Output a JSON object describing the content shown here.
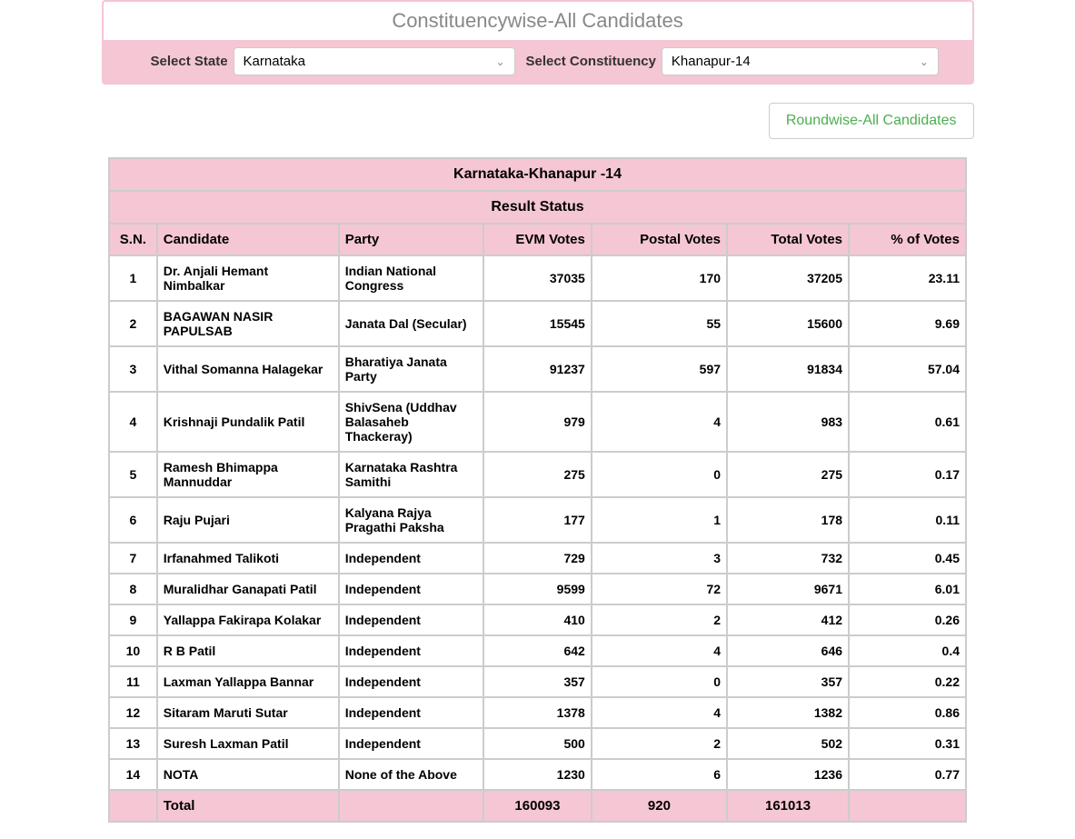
{
  "title": "Constituencywise-All Candidates",
  "filters": {
    "state_label": "Select State",
    "state_value": "Karnataka",
    "constituency_label": "Select Constituency",
    "constituency_value": "Khanapur-14"
  },
  "roundwise_link": "Roundwise-All Candidates",
  "table": {
    "constituency_title": "Karnataka-Khanapur -14",
    "result_status": "Result Status",
    "headers": {
      "sn": "S.N.",
      "candidate": "Candidate",
      "party": "Party",
      "evm": "EVM Votes",
      "postal": "Postal Votes",
      "total": "Total Votes",
      "pct": "% of Votes"
    },
    "rows": [
      {
        "sn": "1",
        "candidate": "Dr. Anjali Hemant Nimbalkar",
        "party": "Indian National Congress",
        "evm": "37035",
        "postal": "170",
        "total": "37205",
        "pct": "23.11"
      },
      {
        "sn": "2",
        "candidate": "BAGAWAN NASIR PAPULSAB",
        "party": "Janata Dal (Secular)",
        "evm": "15545",
        "postal": "55",
        "total": "15600",
        "pct": "9.69"
      },
      {
        "sn": "3",
        "candidate": "Vithal Somanna Halagekar",
        "party": "Bharatiya Janata Party",
        "evm": "91237",
        "postal": "597",
        "total": "91834",
        "pct": "57.04"
      },
      {
        "sn": "4",
        "candidate": "Krishnaji Pundalik Patil",
        "party": "ShivSena (Uddhav Balasaheb Thackeray)",
        "evm": "979",
        "postal": "4",
        "total": "983",
        "pct": "0.61"
      },
      {
        "sn": "5",
        "candidate": "Ramesh Bhimappa Mannuddar",
        "party": "Karnataka Rashtra Samithi",
        "evm": "275",
        "postal": "0",
        "total": "275",
        "pct": "0.17"
      },
      {
        "sn": "6",
        "candidate": "Raju Pujari",
        "party": "Kalyana Rajya Pragathi Paksha",
        "evm": "177",
        "postal": "1",
        "total": "178",
        "pct": "0.11"
      },
      {
        "sn": "7",
        "candidate": "Irfanahmed Talikoti",
        "party": "Independent",
        "evm": "729",
        "postal": "3",
        "total": "732",
        "pct": "0.45"
      },
      {
        "sn": "8",
        "candidate": "Muralidhar Ganapati Patil",
        "party": "Independent",
        "evm": "9599",
        "postal": "72",
        "total": "9671",
        "pct": "6.01"
      },
      {
        "sn": "9",
        "candidate": "Yallappa Fakirapa Kolakar",
        "party": "Independent",
        "evm": "410",
        "postal": "2",
        "total": "412",
        "pct": "0.26"
      },
      {
        "sn": "10",
        "candidate": "R B Patil",
        "party": "Independent",
        "evm": "642",
        "postal": "4",
        "total": "646",
        "pct": "0.4"
      },
      {
        "sn": "11",
        "candidate": "Laxman Yallappa Bannar",
        "party": "Independent",
        "evm": "357",
        "postal": "0",
        "total": "357",
        "pct": "0.22"
      },
      {
        "sn": "12",
        "candidate": "Sitaram Maruti Sutar",
        "party": "Independent",
        "evm": "1378",
        "postal": "4",
        "total": "1382",
        "pct": "0.86"
      },
      {
        "sn": "13",
        "candidate": "Suresh Laxman Patil",
        "party": "Independent",
        "evm": "500",
        "postal": "2",
        "total": "502",
        "pct": "0.31"
      },
      {
        "sn": "14",
        "candidate": "NOTA",
        "party": "None of the Above",
        "evm": "1230",
        "postal": "6",
        "total": "1236",
        "pct": "0.77"
      }
    ],
    "totals": {
      "label": "Total",
      "evm": "160093",
      "postal": "920",
      "total": "161013"
    }
  },
  "colors": {
    "pink": "#f5c6d3",
    "border": "#cccccc",
    "link": "#4caf50",
    "title_text": "#888888"
  }
}
